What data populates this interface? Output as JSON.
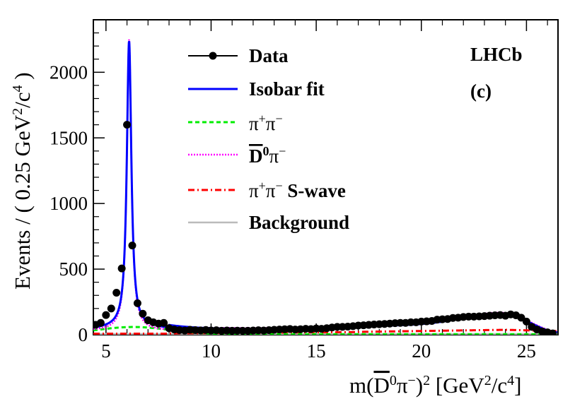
{
  "chart_data": {
    "type": "line",
    "title": "",
    "xlabel": "m(D̄⁰π⁻)² [GeV²/c⁴]",
    "xlabel_parts": {
      "m": "m(",
      "D": "D",
      "zero": "0",
      "pi": "π",
      "minus": "−",
      "close": ")",
      "sq": "2",
      "unit_open": " [GeV",
      "unit_sq": "2",
      "unit_mid": "/c",
      "unit_4": "4",
      "unit_close": "]"
    },
    "ylabel": "Events / ( 0.25 GeV²/c⁴ )",
    "ylabel_parts": {
      "main": "Events / ( 0.25 GeV",
      "sq": "2",
      "mid": "/c",
      "four": "4",
      "close": " )"
    },
    "xlim": [
      4.4,
      26.5
    ],
    "ylim": [
      0,
      2400
    ],
    "xticks": [
      5,
      10,
      15,
      20,
      25
    ],
    "xtick_labels": [
      "5",
      "10",
      "15",
      "20",
      "25"
    ],
    "yticks": [
      0,
      500,
      1000,
      1500,
      2000
    ],
    "ytick_labels": [
      "0",
      "500",
      "1000",
      "1500",
      "2000"
    ],
    "experiment_label": "LHCb",
    "panel_label": "(c)",
    "legend": [
      {
        "key": "data",
        "label": "Data",
        "color": "#000000",
        "style": "marker"
      },
      {
        "key": "fit",
        "label": "Isobar fit",
        "color": "#0000ff",
        "style": "solid"
      },
      {
        "key": "pipi",
        "label": "π⁺π⁻",
        "color": "#00ff00",
        "style": "dashed"
      },
      {
        "key": "dpi",
        "label": "D̄⁰π⁻",
        "color": "#ff00ff",
        "style": "dotted"
      },
      {
        "key": "swave",
        "label": "π⁺π⁻ S-wave",
        "color": "#ff0000",
        "style": "dashdot"
      },
      {
        "key": "bkg",
        "label": "Background",
        "color": "#bbbbbb",
        "style": "solid"
      }
    ],
    "legend_parts": {
      "pi": "π",
      "plus": "+",
      "minus": "−",
      "D": "D",
      "zero": "0",
      "swave": " S-wave"
    },
    "data": {
      "x": [
        4.5,
        4.75,
        5.0,
        5.25,
        5.5,
        5.75,
        6.0,
        6.25,
        6.5,
        6.75,
        7.0,
        7.25,
        7.5,
        7.75,
        8.0,
        8.25,
        8.5,
        8.75,
        9.0,
        9.25,
        9.5,
        9.75,
        10.0,
        10.25,
        10.5,
        10.75,
        11.0,
        11.25,
        11.5,
        11.75,
        12.0,
        12.25,
        12.5,
        12.75,
        13.0,
        13.25,
        13.5,
        13.75,
        14.0,
        14.25,
        14.5,
        14.75,
        15.0,
        15.25,
        15.5,
        15.75,
        16.0,
        16.25,
        16.5,
        16.75,
        17.0,
        17.25,
        17.5,
        17.75,
        18.0,
        18.25,
        18.5,
        18.75,
        19.0,
        19.25,
        19.5,
        19.75,
        20.0,
        20.25,
        20.5,
        20.75,
        21.0,
        21.25,
        21.5,
        21.75,
        22.0,
        22.25,
        22.5,
        22.75,
        23.0,
        23.25,
        23.5,
        23.75,
        24.0,
        24.25,
        24.5,
        24.75,
        25.0,
        25.25,
        25.5,
        25.75,
        26.0,
        26.25
      ],
      "y": [
        75,
        90,
        150,
        200,
        320,
        505,
        1600,
        680,
        240,
        160,
        110,
        95,
        85,
        90,
        50,
        40,
        35,
        32,
        38,
        35,
        33,
        36,
        32,
        34,
        30,
        32,
        30,
        31,
        30,
        30,
        32,
        34,
        32,
        35,
        38,
        40,
        42,
        44,
        40,
        42,
        45,
        43,
        48,
        45,
        50,
        55,
        60,
        60,
        62,
        65,
        70,
        72,
        75,
        78,
        80,
        82,
        85,
        88,
        90,
        90,
        95,
        95,
        100,
        102,
        105,
        115,
        118,
        120,
        128,
        130,
        135,
        138,
        138,
        140,
        142,
        145,
        148,
        150,
        145,
        155,
        148,
        130,
        100,
        60,
        40,
        25,
        18,
        10
      ]
    }
  }
}
